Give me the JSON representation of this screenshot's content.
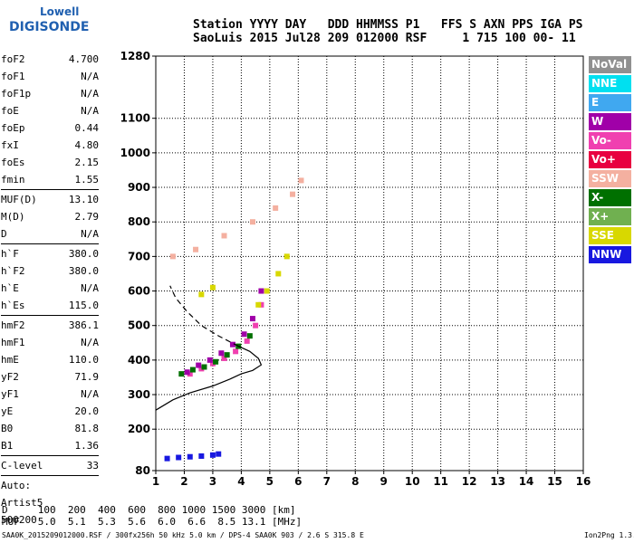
{
  "logo": {
    "top": "Lowell",
    "bottom": "DIGISONDE"
  },
  "header": {
    "line1": "Station YYYY DAY   DDD HHMMSS P1   FFS S AXN PPS IGA PS",
    "line2": "SaoLuis 2015 Jul28 209 012000 RSF     1 715 100 00- 11"
  },
  "params": [
    {
      "label": "foF2",
      "value": "4.700"
    },
    {
      "label": "foF1",
      "value": "N/A"
    },
    {
      "label": "foF1p",
      "value": "N/A"
    },
    {
      "label": "foE",
      "value": "N/A"
    },
    {
      "label": "foEp",
      "value": "0.44"
    },
    {
      "label": "fxI",
      "value": "4.80"
    },
    {
      "label": "foEs",
      "value": "2.15"
    },
    {
      "label": "fmin",
      "value": "1.55"
    },
    {
      "sep": true
    },
    {
      "label": "MUF(D)",
      "value": "13.10"
    },
    {
      "label": "M(D)",
      "value": "2.79"
    },
    {
      "label": "D",
      "value": "N/A"
    },
    {
      "sep": true
    },
    {
      "label": "h`F",
      "value": "380.0"
    },
    {
      "label": "h`F2",
      "value": "380.0"
    },
    {
      "label": "h`E",
      "value": "N/A"
    },
    {
      "label": "h`Es",
      "value": "115.0"
    },
    {
      "sep": true
    },
    {
      "label": "hmF2",
      "value": "386.1"
    },
    {
      "label": "hmF1",
      "value": "N/A"
    },
    {
      "label": "hmE",
      "value": "110.0"
    },
    {
      "label": "yF2",
      "value": "71.9"
    },
    {
      "label": "yF1",
      "value": "N/A"
    },
    {
      "label": "yE",
      "value": "20.0"
    },
    {
      "label": "B0",
      "value": "81.8"
    },
    {
      "label": "B1",
      "value": "1.36"
    },
    {
      "sep": true
    },
    {
      "label": "C-level",
      "value": "33"
    },
    {
      "sep": true
    },
    {
      "label": "Auto:",
      "value": ""
    },
    {
      "label": "Artist5",
      "value": ""
    },
    {
      "label": "500200",
      "value": ""
    }
  ],
  "legend": [
    {
      "label": "NoVal",
      "color": "#909090"
    },
    {
      "label": "NNE",
      "color": "#00e0f0"
    },
    {
      "label": "E",
      "color": "#40a8f0"
    },
    {
      "label": "W",
      "color": "#a000a8"
    },
    {
      "label": "Vo-",
      "color": "#f040b0"
    },
    {
      "label": "Vo+",
      "color": "#e80040"
    },
    {
      "label": "SSW",
      "color": "#f4b0a0"
    },
    {
      "label": "X-",
      "color": "#007000"
    },
    {
      "label": "X+",
      "color": "#70b050"
    },
    {
      "label": "SSE",
      "color": "#d8d800"
    },
    {
      "label": "NNW",
      "color": "#1818e0"
    }
  ],
  "dmuf": {
    "line1": "D     100  200  400  600  800 1000 1500 3000 [km]",
    "line2": "MUF   5.0  5.1  5.3  5.6  6.0  6.6  8.5 13.1 [MHz]"
  },
  "footer": "SAA0K_2015209012000.RSF / 300fx256h 50 kHz 5.0 km / DPS-4 SAA0K 903 / 2.6 S 315.8 E",
  "version": "Ion2Png 1.3.17",
  "chart_data": {
    "type": "scatter",
    "title": "",
    "xlabel": "",
    "ylabel": "",
    "xlim": [
      1,
      16
    ],
    "ylim": [
      80,
      1280
    ],
    "x_ticks": [
      1,
      2,
      3,
      4,
      5,
      6,
      7,
      8,
      9,
      10,
      11,
      12,
      13,
      14,
      15,
      16
    ],
    "y_ticks": [
      80,
      200,
      300,
      400,
      500,
      600,
      700,
      800,
      900,
      1000,
      1100,
      1280
    ],
    "grid": true,
    "series": [
      {
        "name": "Vo-",
        "x": [
          2.2,
          2.6,
          3.0,
          3.4,
          3.8,
          4.2,
          4.5,
          4.7
        ],
        "y": [
          360,
          375,
          390,
          405,
          425,
          455,
          500,
          560
        ]
      },
      {
        "name": "W",
        "x": [
          2.1,
          2.5,
          2.9,
          3.3,
          3.7,
          4.1,
          4.4,
          4.7
        ],
        "y": [
          365,
          385,
          400,
          420,
          445,
          475,
          520,
          600
        ]
      },
      {
        "name": "SSW",
        "x": [
          1.6,
          2.4,
          3.4,
          4.4,
          5.2,
          5.8,
          6.1
        ],
        "y": [
          700,
          720,
          760,
          800,
          840,
          880,
          920
        ]
      },
      {
        "name": "NNW",
        "x": [
          1.4,
          1.8,
          2.2,
          2.6,
          3.0,
          3.2
        ],
        "y": [
          115,
          118,
          120,
          122,
          125,
          128
        ]
      },
      {
        "name": "X-",
        "x": [
          1.9,
          2.3,
          2.7,
          3.1,
          3.5,
          3.9,
          4.3
        ],
        "y": [
          360,
          372,
          380,
          395,
          415,
          440,
          470
        ]
      },
      {
        "name": "SSE",
        "x": [
          2.6,
          3.0,
          4.6,
          4.9,
          5.3,
          5.6
        ],
        "y": [
          590,
          610,
          560,
          600,
          650,
          700
        ]
      }
    ],
    "profile": {
      "solid": {
        "x": [
          1.0,
          1.6,
          2.2,
          3.0,
          3.6,
          4.0,
          4.4,
          4.7,
          4.6,
          4.3,
          3.9
        ],
        "y": [
          255,
          285,
          305,
          325,
          345,
          360,
          370,
          386,
          405,
          425,
          440
        ]
      },
      "dashed": {
        "x": [
          3.9,
          3.2,
          2.6,
          2.1,
          1.7,
          1.5
        ],
        "y": [
          440,
          470,
          500,
          540,
          580,
          615
        ]
      }
    }
  }
}
